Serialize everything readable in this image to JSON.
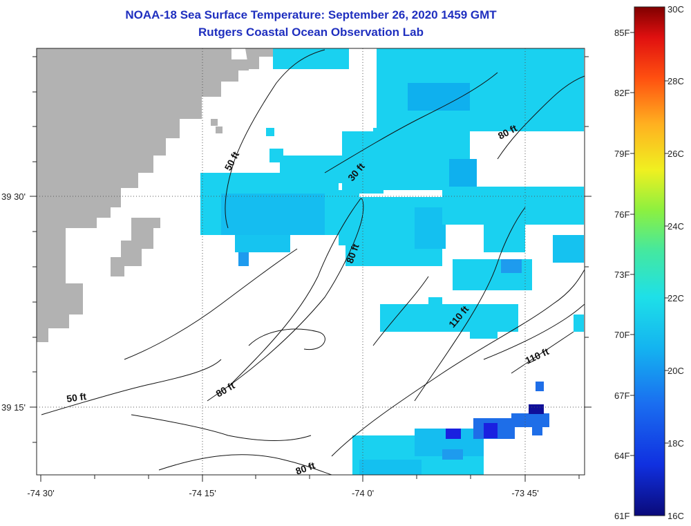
{
  "title": "NOAA-18 Sea Surface Temperature:  September 26, 2020 1459 GMT",
  "subtitle": "Rutgers Coastal Ocean Observation Lab",
  "x_ticks": [
    "-74 30'",
    "-74 15'",
    "-74 0'",
    "-73 45'"
  ],
  "y_ticks": [
    "39 30'",
    "39 15'"
  ],
  "contour_labels": [
    "50 ft",
    "80 ft",
    "30 ft",
    "80 ft",
    "110 ft",
    "110 ft",
    "80 ft",
    "50 ft",
    "80 ft"
  ],
  "colorbar": {
    "f_labels": [
      "85F",
      "82F",
      "79F",
      "76F",
      "73F",
      "70F",
      "67F",
      "64F",
      "61F"
    ],
    "c_labels": [
      "30C",
      "28C",
      "26C",
      "24C",
      "22C",
      "20C",
      "18C",
      "16C"
    ],
    "range_c": [
      16,
      30
    ]
  },
  "colors": {
    "land": "#b2b2b2",
    "sst_main": "#1ad1f0",
    "sst_mid": "#0fb0ee",
    "sst_blue": "#1e6ee8",
    "sst_dark": "#1a20e0",
    "title": "#1f2fbf"
  }
}
